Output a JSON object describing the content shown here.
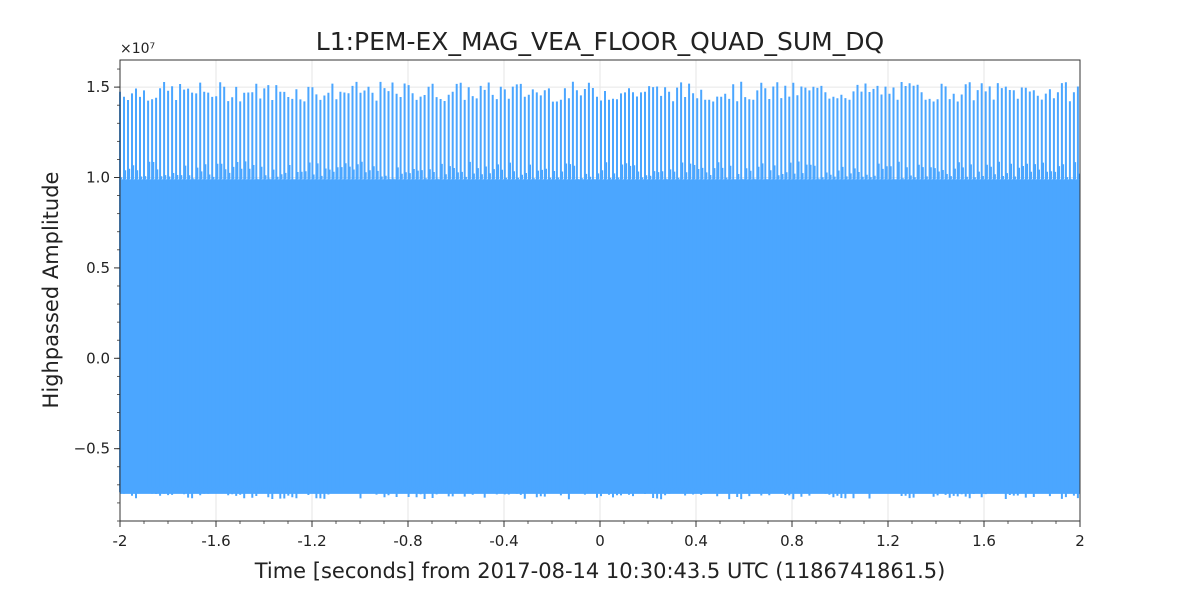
{
  "chart_data": {
    "type": "line",
    "title": "L1:PEM-EX_MAG_VEA_FLOOR_QUAD_SUM_DQ",
    "xlabel": "Time [seconds] from 2017-08-14 10:30:43.5 UTC (1186741861.5)",
    "ylabel": "Highpassed Amplitude",
    "y_multiplier": "×10⁷",
    "xlim": [
      -2,
      2
    ],
    "ylim": [
      -0.9,
      1.65
    ],
    "x_ticks": [
      -2,
      -1.6,
      -1.2,
      -0.8,
      -0.4,
      0,
      0.4,
      0.8,
      1.2,
      1.6,
      2
    ],
    "x_tick_labels": [
      "-2",
      "-1.6",
      "-1.2",
      "-0.8",
      "-0.4",
      "0",
      "0.4",
      "0.8",
      "1.2",
      "1.6",
      "2"
    ],
    "y_ticks": [
      -0.5,
      0.0,
      0.5,
      1.0,
      1.5
    ],
    "y_tick_labels": [
      "−0.5",
      "0.0",
      "0.5",
      "1.0",
      "1.5"
    ],
    "grid": true,
    "series": [
      {
        "color": "#4ba6ff",
        "envelope": {
          "body_max": 0.99,
          "body_min": -0.75,
          "spike_max_range": [
            1.42,
            1.53
          ],
          "spike_min_range": [
            -0.71,
            -0.78
          ],
          "spike_period_s": 0.0167
        }
      }
    ]
  }
}
